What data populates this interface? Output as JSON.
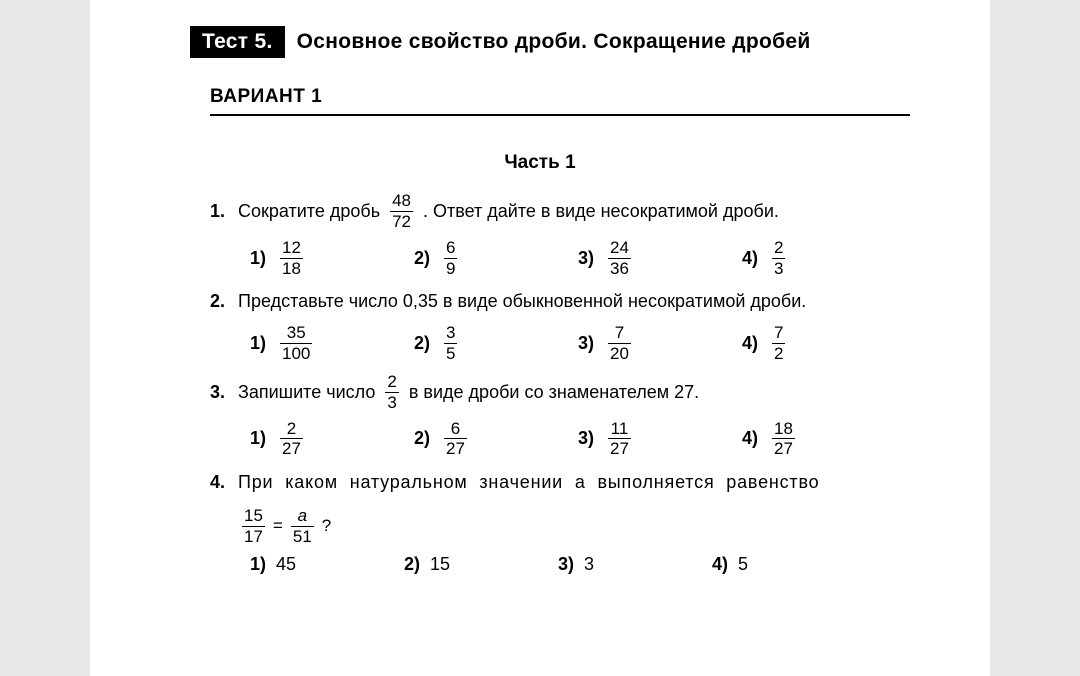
{
  "header": {
    "badge": "Тест 5.",
    "title": "Основное свойство дроби. Сокращение дробей"
  },
  "variant": "ВАРИАНТ 1",
  "part": "Часть 1",
  "p1": {
    "num": "1.",
    "pre": "Сократите дробь",
    "frac": {
      "n": "48",
      "d": "72"
    },
    "post": ". Ответ дайте в виде несократимой дроби.",
    "opts": {
      "l1": "1)",
      "f1": {
        "n": "12",
        "d": "18"
      },
      "l2": "2)",
      "f2": {
        "n": "6",
        "d": "9"
      },
      "l3": "3)",
      "f3": {
        "n": "24",
        "d": "36"
      },
      "l4": "4)",
      "f4": {
        "n": "2",
        "d": "3"
      }
    }
  },
  "p2": {
    "num": "2.",
    "text": "Представьте число 0,35 в виде обыкновенной несократимой дроби.",
    "opts": {
      "l1": "1)",
      "f1": {
        "n": "35",
        "d": "100"
      },
      "l2": "2)",
      "f2": {
        "n": "3",
        "d": "5"
      },
      "l3": "3)",
      "f3": {
        "n": "7",
        "d": "20"
      },
      "l4": "4)",
      "f4": {
        "n": "7",
        "d": "2"
      }
    }
  },
  "p3": {
    "num": "3.",
    "pre": "Запишите число",
    "frac": {
      "n": "2",
      "d": "3"
    },
    "post": "в виде дроби со знаменателем 27.",
    "opts": {
      "l1": "1)",
      "f1": {
        "n": "2",
        "d": "27"
      },
      "l2": "2)",
      "f2": {
        "n": "6",
        "d": "27"
      },
      "l3": "3)",
      "f3": {
        "n": "11",
        "d": "27"
      },
      "l4": "4)",
      "f4": {
        "n": "18",
        "d": "27"
      }
    }
  },
  "p4": {
    "num": "4.",
    "text": "При  каком  натуральном  значении  a  выполняется  равенство",
    "eq": {
      "left": {
        "n": "15",
        "d": "17"
      },
      "eq": "=",
      "right": {
        "n": "a",
        "d": "51"
      },
      "q": "?"
    },
    "opts": {
      "l1": "1)",
      "v1": "45",
      "l2": "2)",
      "v2": "15",
      "l3": "3)",
      "v3": "3",
      "l4": "4)",
      "v4": "5"
    }
  }
}
